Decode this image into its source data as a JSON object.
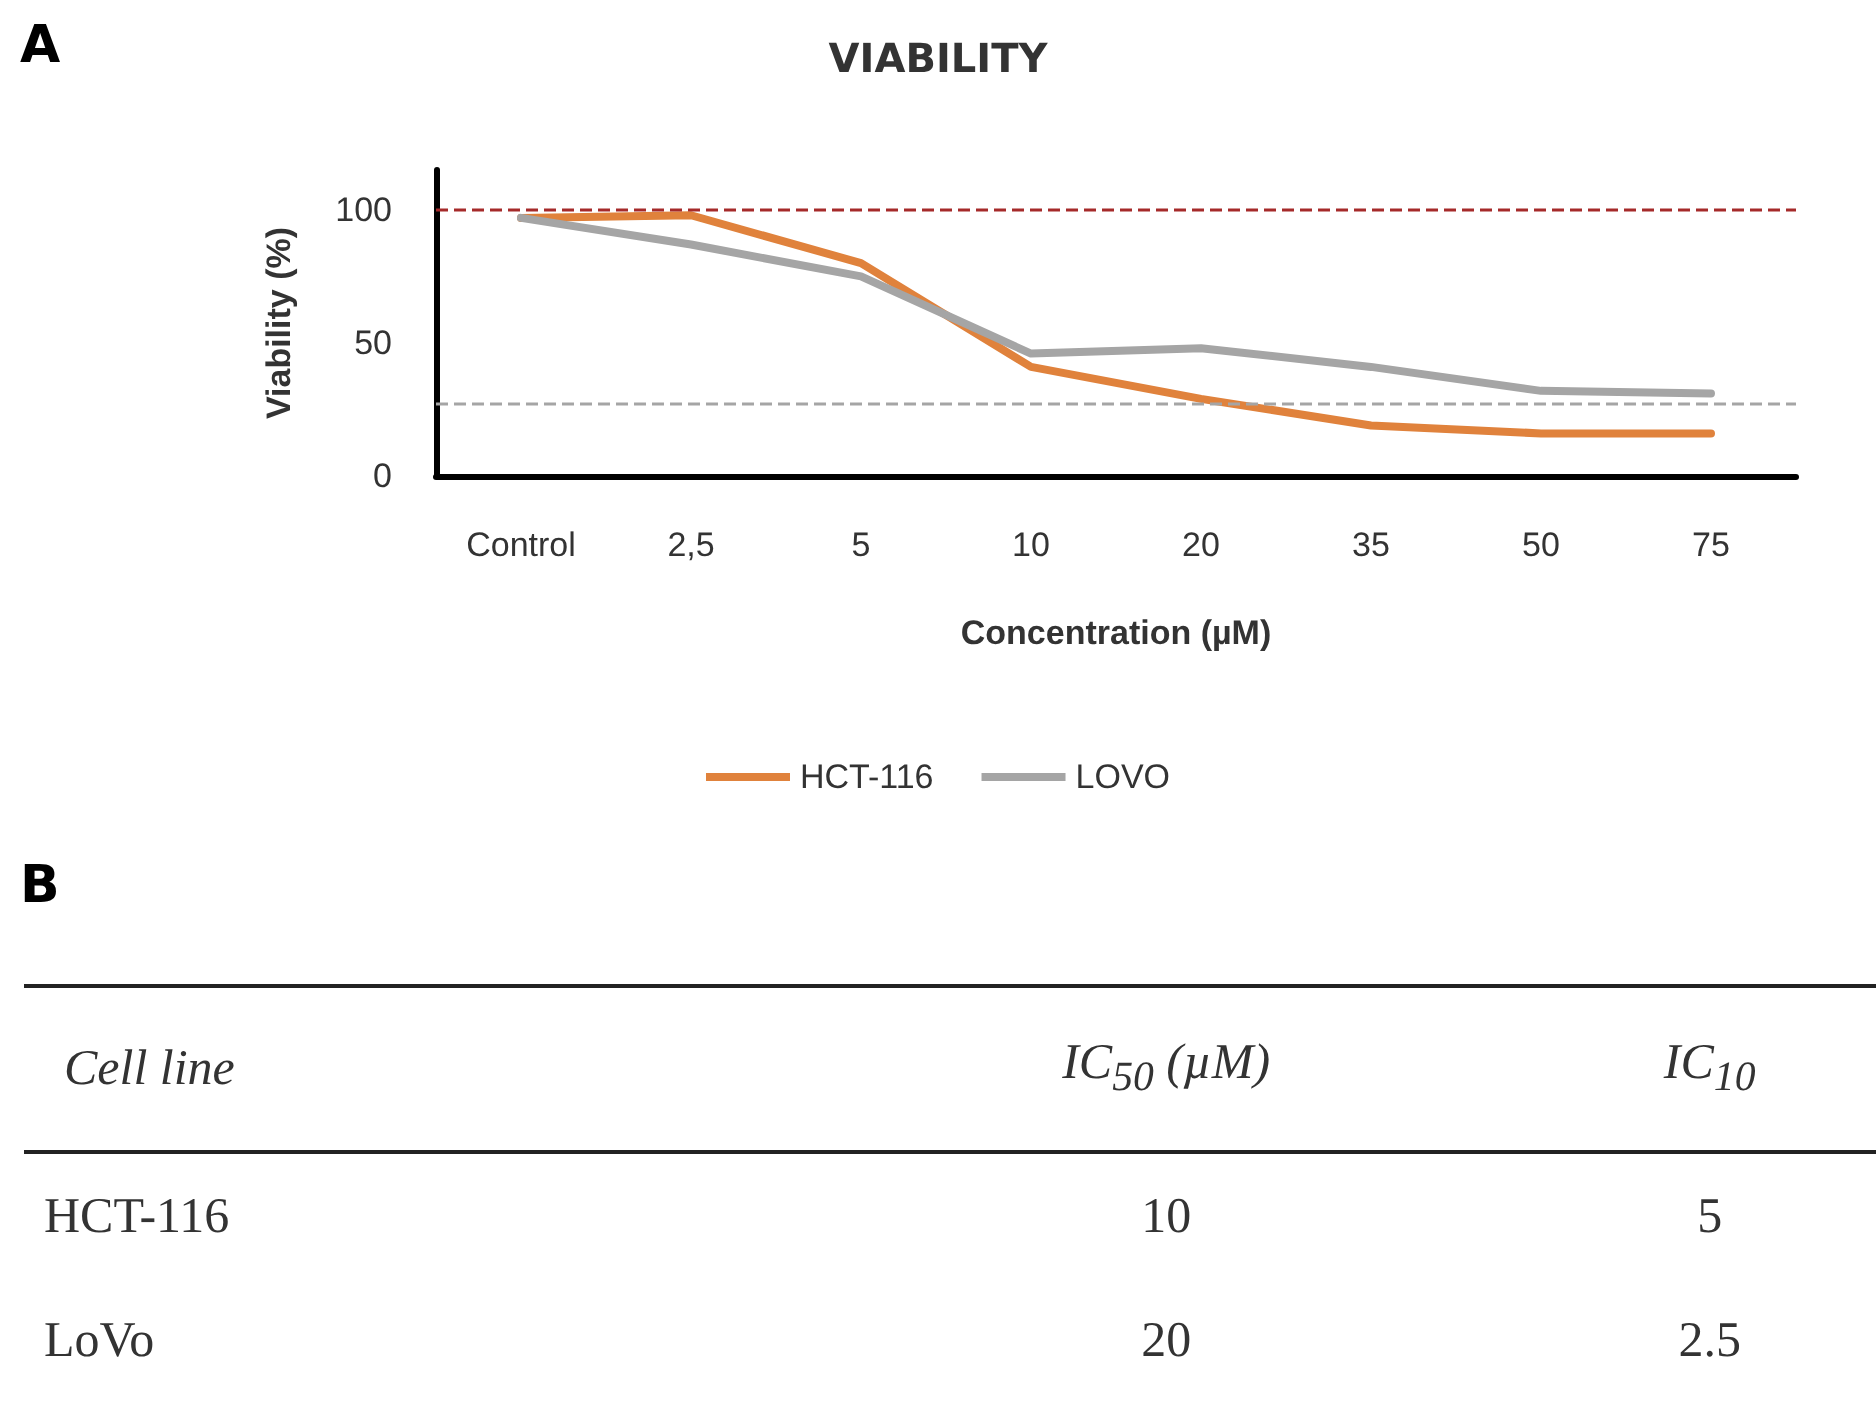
{
  "chart_data": [
    {
      "type": "line",
      "title": "VIABILITY",
      "annotations": [
        "A"
      ],
      "xlabel": "Concentration (µM)",
      "ylabel": "Viability (%)",
      "categories": [
        "Control",
        "2,5",
        "5",
        "10",
        "20",
        "35",
        "50",
        "75"
      ],
      "series": [
        {
          "name": "HCT-116",
          "color": "#e0823c",
          "values": [
            97,
            98,
            80,
            41,
            29,
            19,
            16,
            16
          ]
        },
        {
          "name": "LOVO",
          "color": "#a5a5a5",
          "values": [
            97,
            87,
            75,
            46,
            48,
            41,
            32,
            31
          ]
        }
      ],
      "ylim": [
        0,
        115
      ],
      "yticks": [
        0,
        50,
        100
      ],
      "grid": false,
      "legend": "bottom",
      "marker": "none",
      "line_style": "solid",
      "ref_lines": [
        {
          "axis": "y",
          "value": 100,
          "color": "#a52a2a",
          "line_style": "dashed"
        },
        {
          "axis": "y",
          "value": 27,
          "color": "#a5a5a5",
          "line_style": "dashed"
        }
      ]
    },
    {
      "type": "other",
      "annotations": [
        "B"
      ],
      "ylabel": "Cell line",
      "categories": [
        "IC$_{50}$ (µM)",
        "IC$_{10}$"
      ],
      "y_categories": [
        "HCT-116",
        "LoVo"
      ],
      "cell_labels": [
        [
          "10",
          "5"
        ],
        [
          "20",
          "2.5"
        ]
      ]
    }
  ]
}
